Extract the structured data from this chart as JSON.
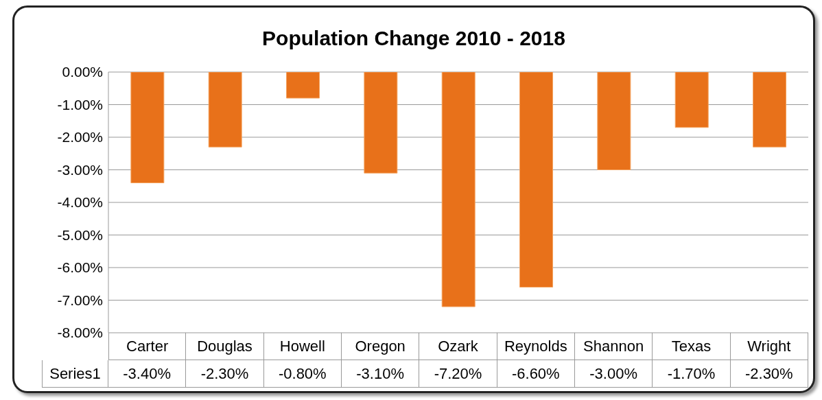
{
  "chart_data": {
    "type": "bar",
    "title": "Population Change 2010 - 2018",
    "categories": [
      "Carter",
      "Douglas",
      "Howell",
      "Oregon",
      "Ozark",
      "Reynolds",
      "Shannon",
      "Texas",
      "Wright"
    ],
    "series": [
      {
        "name": "Series1",
        "color": "#e8711a",
        "values": [
          -3.4,
          -2.3,
          -0.8,
          -3.1,
          -7.2,
          -6.6,
          -3.0,
          -1.7,
          -2.3
        ],
        "value_labels": [
          "-3.40%",
          "-2.30%",
          "-0.80%",
          "-3.10%",
          "-7.20%",
          "-6.60%",
          "-3.00%",
          "-1.70%",
          "-2.30%"
        ]
      }
    ],
    "ylim": [
      -8,
      0
    ],
    "yticks": [
      {
        "value": 0,
        "label": "0.00%"
      },
      {
        "value": -1,
        "label": "-1.00%"
      },
      {
        "value": -2,
        "label": "-2.00%"
      },
      {
        "value": -3,
        "label": "-3.00%"
      },
      {
        "value": -4,
        "label": "-4.00%"
      },
      {
        "value": -5,
        "label": "-5.00%"
      },
      {
        "value": -6,
        "label": "-6.00%"
      },
      {
        "value": -7,
        "label": "-7.00%"
      },
      {
        "value": -8,
        "label": "-8.00%"
      }
    ],
    "grid": "y"
  }
}
